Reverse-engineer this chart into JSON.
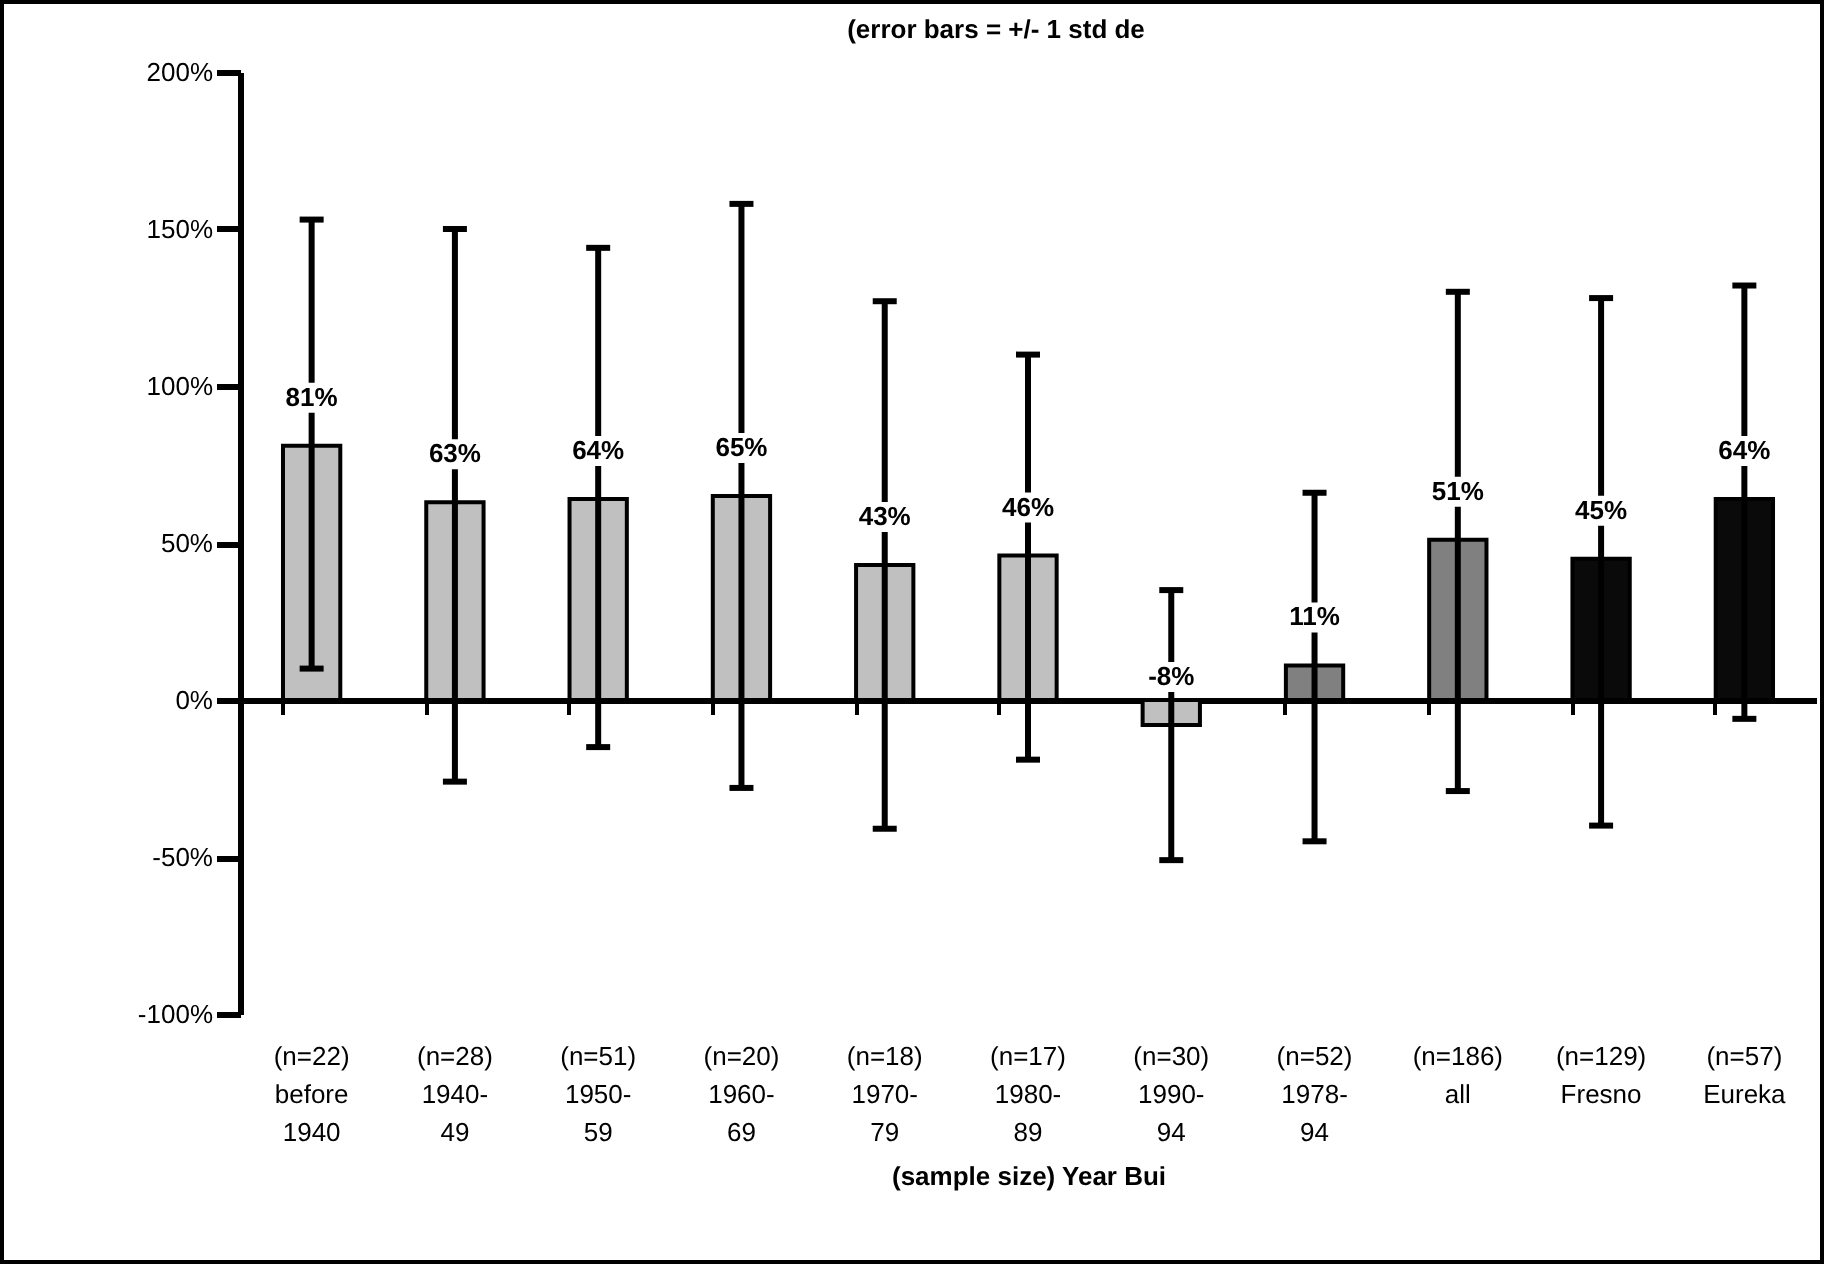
{
  "chart_data": {
    "type": "bar",
    "title": "(error bars = +/- 1 std de",
    "xlabel": "(sample size) Year Bui",
    "categories": [
      "(n=22)\nbefore\n1940",
      "(n=28)\n1940-\n49",
      "(n=51)\n1950-\n59",
      "(n=20)\n1960-\n69",
      "(n=18)\n1970-\n79",
      "(n=17)\n1980-\n89",
      "(n=30)\n1990-\n94",
      "(n=52)\n1978-\n94",
      "(n=186)\nall",
      "(n=129)\nFresno",
      "(n=57)\nEureka"
    ],
    "values": [
      81,
      63,
      64,
      65,
      43,
      46,
      -8,
      11,
      51,
      45,
      64
    ],
    "colors": [
      "#c0c0c0",
      "#c0c0c0",
      "#c0c0c0",
      "#c0c0c0",
      "#c0c0c0",
      "#c0c0c0",
      "#c0c0c0",
      "#808080",
      "#808080",
      "#0a0a0a",
      "#0a0a0a"
    ],
    "value_labels": [
      "81%",
      "63%",
      "64%",
      "65%",
      "43%",
      "46%",
      "-8%",
      "11%",
      "51%",
      "45%",
      "64%"
    ],
    "errors": [
      [
        10,
        153
      ],
      [
        -26,
        150
      ],
      [
        -15,
        144
      ],
      [
        -28,
        158
      ],
      [
        -41,
        127
      ],
      [
        -19,
        110
      ],
      [
        -51,
        35
      ],
      [
        -45,
        66
      ],
      [
        -29,
        130
      ],
      [
        -40,
        128
      ],
      [
        -6,
        132
      ]
    ],
    "ylim": [
      -100,
      200
    ],
    "yticks": [
      {
        "value": -100,
        "label": "-100%"
      },
      {
        "value": -50,
        "label": "-50%"
      },
      {
        "value": 0,
        "label": "0%"
      },
      {
        "value": 50,
        "label": "50%"
      },
      {
        "value": 100,
        "label": "100%"
      },
      {
        "value": 150,
        "label": "150%"
      },
      {
        "value": 200,
        "label": "200%"
      }
    ],
    "tick_labels": true
  }
}
